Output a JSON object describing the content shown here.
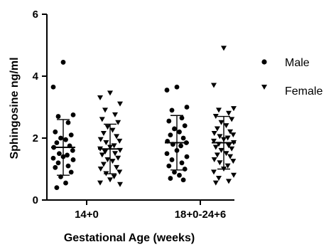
{
  "chart_data": {
    "type": "scatter",
    "xlabel": "Gestational Age (weeks)",
    "ylabel": "Sphingosine ng/ml",
    "ylim": [
      0,
      6
    ],
    "yticks": [
      "0",
      "2",
      "4",
      "6"
    ],
    "categories": [
      "14+0",
      "18+0-24+6"
    ],
    "legend_position": "right",
    "series": [
      {
        "name": "Male",
        "marker": "circle",
        "color": "#000000",
        "groups": [
          {
            "category": "14+0",
            "mean": 1.7,
            "sd": 0.9,
            "values": [
              4.45,
              3.65,
              2.75,
              2.7,
              2.5,
              2.2,
              2.1,
              2.0,
              1.95,
              1.85,
              1.75,
              1.7,
              1.6,
              1.5,
              1.45,
              1.4,
              1.35,
              1.3,
              1.2,
              1.1,
              1.05,
              0.9,
              0.75,
              0.55,
              0.4
            ]
          },
          {
            "category": "18+0-24+6",
            "mean": 1.85,
            "sd": 0.88,
            "values": [
              3.65,
              3.55,
              3.0,
              2.9,
              2.65,
              2.55,
              2.4,
              2.3,
              2.2,
              2.1,
              2.0,
              1.9,
              1.85,
              1.8,
              1.75,
              1.6,
              1.5,
              1.4,
              1.3,
              1.2,
              1.1,
              1.0,
              0.9,
              0.8,
              0.7,
              0.65
            ]
          }
        ]
      },
      {
        "name": "Female",
        "marker": "triangle-down",
        "color": "#000000",
        "groups": [
          {
            "category": "14+0",
            "mean": 1.65,
            "sd": 0.8,
            "values": [
              3.45,
              3.3,
              3.1,
              2.9,
              2.75,
              2.6,
              2.5,
              2.35,
              2.25,
              2.15,
              2.05,
              1.95,
              1.9,
              1.85,
              1.75,
              1.7,
              1.65,
              1.6,
              1.55,
              1.5,
              1.45,
              1.35,
              1.3,
              1.25,
              1.15,
              1.05,
              1.0,
              0.9,
              0.85,
              0.75,
              0.65,
              0.55,
              0.5
            ]
          },
          {
            "category": "18+0-24+6",
            "mean": 1.85,
            "sd": 0.85,
            "values": [
              4.9,
              3.7,
              2.95,
              2.9,
              2.8,
              2.7,
              2.6,
              2.5,
              2.4,
              2.3,
              2.2,
              2.15,
              2.1,
              2.05,
              2.0,
              1.95,
              1.9,
              1.85,
              1.8,
              1.75,
              1.7,
              1.65,
              1.6,
              1.5,
              1.45,
              1.4,
              1.3,
              1.25,
              1.2,
              1.1,
              1.0,
              0.9,
              0.8,
              0.7,
              0.6,
              0.55
            ]
          }
        ]
      }
    ]
  }
}
